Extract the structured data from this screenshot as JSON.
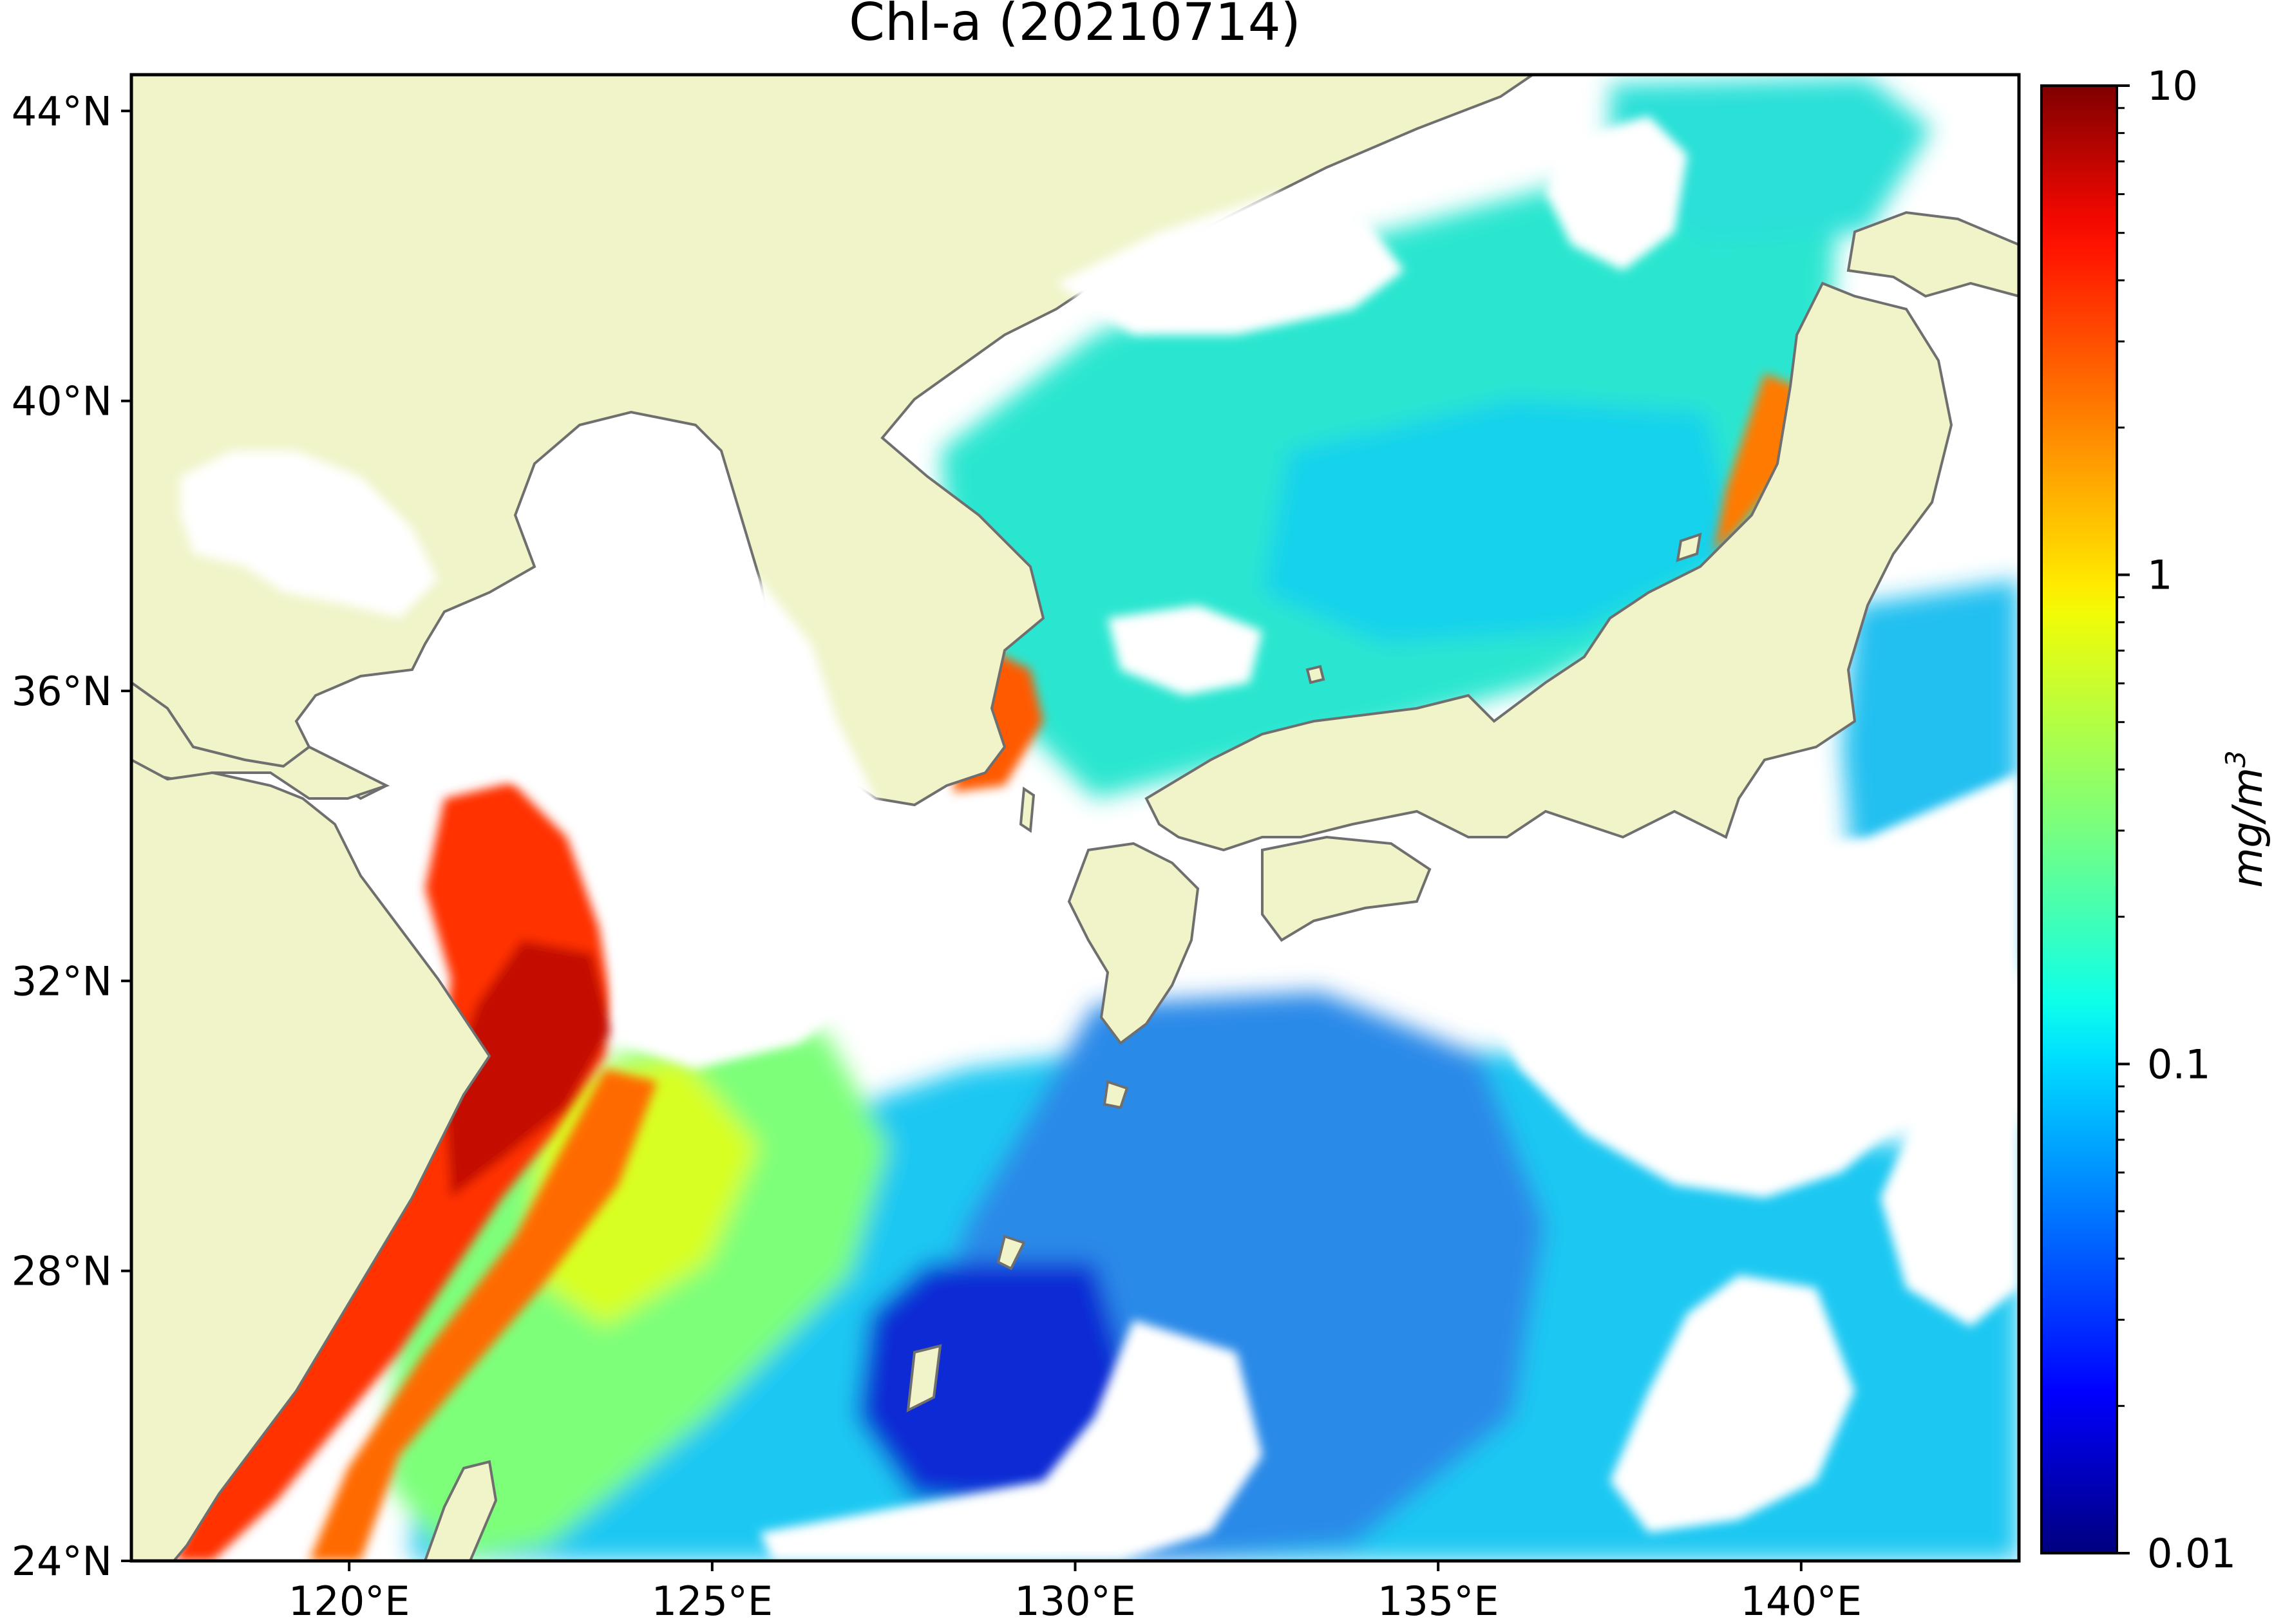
{
  "title": "Chl-a (20210714)",
  "map": {
    "extent": {
      "lon_min": 117,
      "lon_max": 143,
      "lat_min": 24,
      "lat_max": 44.5
    },
    "lat_ticks": [
      {
        "value": 44,
        "label": "44°N"
      },
      {
        "value": 40,
        "label": "40°N"
      },
      {
        "value": 36,
        "label": "36°N"
      },
      {
        "value": 32,
        "label": "32°N"
      },
      {
        "value": 28,
        "label": "28°N"
      },
      {
        "value": 24,
        "label": "24°N"
      }
    ],
    "lon_ticks": [
      {
        "value": 120,
        "label": "120°E"
      },
      {
        "value": 125,
        "label": "125°E"
      },
      {
        "value": 130,
        "label": "130°E"
      },
      {
        "value": 135,
        "label": "135°E"
      },
      {
        "value": 140,
        "label": "140°E"
      }
    ],
    "colors": {
      "land": "#f0f4c8",
      "coastline": "#6f6f6f",
      "no_data": "#ffffff"
    }
  },
  "colorbar": {
    "label": "mg/m",
    "label_superscript": "3",
    "scale": "log",
    "vmin": 0.01,
    "vmax": 10,
    "colormap": "jet",
    "ticks": [
      {
        "value": 10,
        "label": "10"
      },
      {
        "value": 1,
        "label": "1"
      },
      {
        "value": 0.1,
        "label": "0.1"
      },
      {
        "value": 0.01,
        "label": "0.01"
      }
    ]
  }
}
